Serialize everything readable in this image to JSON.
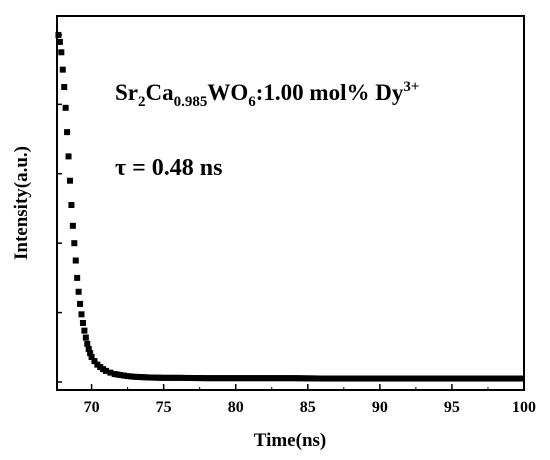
{
  "chart_data": {
    "type": "scatter",
    "xlabel": "Time(ns)",
    "ylabel": "Intensity(a.u.)",
    "xlim": [
      67.6,
      100
    ],
    "ylim": [
      0,
      1.02
    ],
    "x_ticks": [
      70,
      75,
      80,
      85,
      90,
      95,
      100
    ],
    "y_tick_labels_shown": false,
    "grid": false,
    "legend": "none",
    "marker": "square",
    "color": "#000000",
    "annotation": {
      "formula_parts": [
        "Sr",
        "2",
        "Ca",
        "0.985",
        "WO",
        "6",
        ":1.00 mol% Dy",
        "3+"
      ],
      "lifetime": "τ = 0.48 ns"
    },
    "series": [
      {
        "x": [
          67.7,
          67.8,
          67.9,
          68.0,
          68.1,
          68.2,
          68.3,
          68.4,
          68.5,
          68.6,
          68.7,
          68.8,
          68.9,
          69.0,
          69.1,
          69.2,
          69.3,
          69.4,
          69.5,
          69.6,
          69.7,
          69.8,
          69.9,
          70.0,
          70.2,
          70.4,
          70.6,
          70.8,
          71.0,
          71.3,
          71.6,
          72.0,
          72.5,
          73.0,
          74.0,
          75.0,
          76.0,
          78.0,
          80.0,
          82.0,
          84.0,
          86.0,
          88.0,
          90.0,
          92.0,
          94.0,
          96.0,
          98.0,
          100.0
        ],
        "y": [
          1.0,
          0.98,
          0.95,
          0.9,
          0.85,
          0.79,
          0.72,
          0.65,
          0.58,
          0.51,
          0.45,
          0.4,
          0.35,
          0.3,
          0.26,
          0.225,
          0.195,
          0.17,
          0.148,
          0.128,
          0.11,
          0.095,
          0.083,
          0.072,
          0.06,
          0.05,
          0.043,
          0.037,
          0.032,
          0.027,
          0.023,
          0.02,
          0.017,
          0.015,
          0.013,
          0.012,
          0.012,
          0.011,
          0.011,
          0.011,
          0.011,
          0.01,
          0.01,
          0.01,
          0.01,
          0.01,
          0.01,
          0.01,
          0.01
        ]
      }
    ]
  }
}
